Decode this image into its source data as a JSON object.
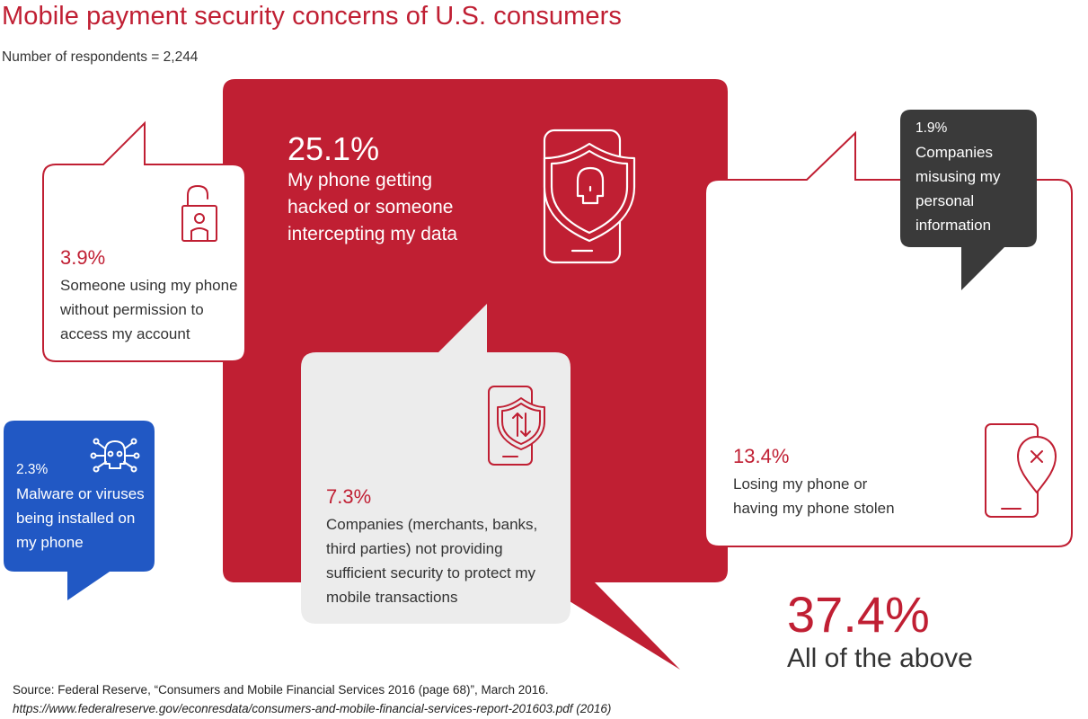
{
  "header": {
    "title": "Mobile payment security concerns of U.S. consumers",
    "subtitle": "Number of respondents = 2,244"
  },
  "colors": {
    "red": "#c01f33",
    "gray_box": "#ececec",
    "dark_box": "#3a3a3a",
    "blue_box": "#2158c4",
    "text_dark": "#333333"
  },
  "chart_data": {
    "type": "table",
    "title": "Mobile payment security concerns of U.S. consumers",
    "subtitle": "Number of respondents = 2,244",
    "items": [
      {
        "label_pct": "25.1%",
        "value": 25.1,
        "label": "My phone getting hacked or someone intercepting my data",
        "icon": "phone-shield-skull-icon"
      },
      {
        "label_pct": "3.9%",
        "value": 3.9,
        "label": "Someone using my phone without permission to access my account",
        "icon": "padlock-user-icon"
      },
      {
        "label_pct": "2.3%",
        "value": 2.3,
        "label": "Malware or viruses being installed on my phone",
        "icon": "virus-skull-icon"
      },
      {
        "label_pct": "7.3%",
        "value": 7.3,
        "label": "Companies (merchants, banks, third parties) not providing sufficient security to protect my mobile transactions",
        "icon": "phone-shield-arrows-icon"
      },
      {
        "label_pct": "1.9%",
        "value": 1.9,
        "label": "Companies misusing my personal information",
        "icon": ""
      },
      {
        "label_pct": "13.4%",
        "value": 13.4,
        "label": "Losing my phone or having my phone stolen",
        "icon": "phone-location-pin-icon"
      },
      {
        "label_pct": "37.4%",
        "value": 37.4,
        "label": "All of the above",
        "icon": ""
      }
    ]
  },
  "bubbles": {
    "hacked": {
      "pct": "25.1%",
      "lines": [
        "My phone getting",
        "hacked or someone",
        "intercepting my data"
      ]
    },
    "permission": {
      "pct": "3.9%",
      "lines": [
        "Someone using my phone",
        "without permission to",
        "access my account"
      ]
    },
    "malware": {
      "pct": "2.3%",
      "lines": [
        "Malware or viruses",
        "being installed on",
        "my phone"
      ]
    },
    "companies_security": {
      "pct": "7.3%",
      "lines": [
        "Companies (merchants, banks,",
        "third parties) not providing",
        "sufficient security to protect my",
        "mobile transactions"
      ]
    },
    "misusing": {
      "pct": "1.9%",
      "lines": [
        "Companies",
        "misusing my",
        "personal",
        "information"
      ]
    },
    "losing": {
      "pct": "13.4%",
      "lines": [
        "Losing my phone or",
        "having my phone stolen"
      ]
    },
    "all_above": {
      "pct": "37.4%",
      "label": "All of the above"
    }
  },
  "footer": {
    "source": "Source: Federal Reserve, “Consumers and Mobile Financial Services 2016 (page 68)”, March 2016.",
    "url": "https://www.federalreserve.gov/econresdata/consumers-and-mobile-financial-services-report-201603.pdf (2016)"
  }
}
